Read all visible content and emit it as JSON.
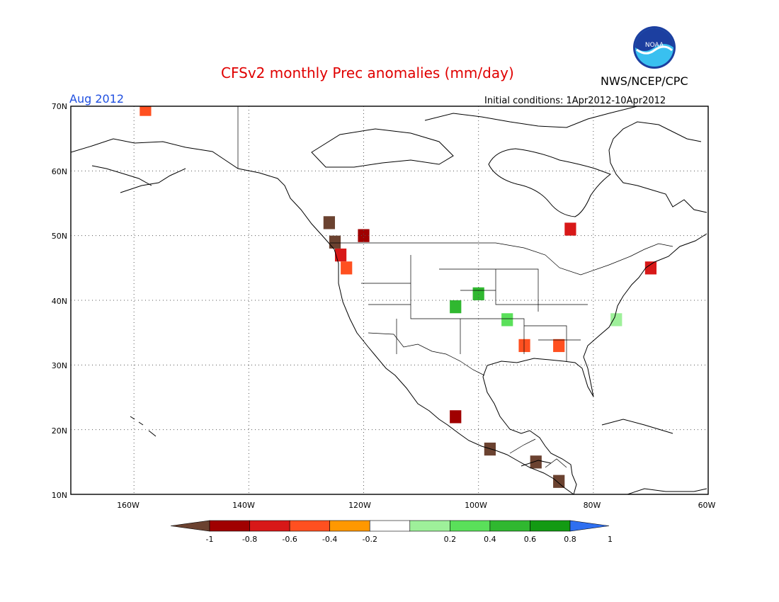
{
  "header": {
    "title": "CFSv2 monthly Prec anomalies (mm/day)",
    "month": "Aug 2012",
    "initial_conditions": "Initial conditions: 1Apr2012-10Apr2012",
    "agency": "NWS/NCEP/CPC",
    "logo_text": "NOAA"
  },
  "axes": {
    "lat_labels": [
      "70N",
      "60N",
      "50N",
      "40N",
      "30N",
      "20N",
      "10N"
    ],
    "lon_labels": [
      "160W",
      "140W",
      "120W",
      "100W",
      "80W",
      "60W"
    ]
  },
  "colorbar": {
    "labels": [
      "-1",
      "-0.8",
      "-0.6",
      "-0.4",
      "-0.2",
      "0.2",
      "0.4",
      "0.6",
      "0.8",
      "1"
    ],
    "colors": [
      "#6b4230",
      "#a00000",
      "#d81818",
      "#ff5020",
      "#ff9800",
      "#ffffff",
      "#9ef09a",
      "#5ae05a",
      "#30b830",
      "#139a13",
      "#2f6ff0"
    ]
  },
  "map": {
    "lon_range": [
      -171,
      -60
    ],
    "lat_range": [
      10,
      70
    ],
    "anomaly_cells": [
      {
        "lon": -158,
        "lat": 69.5,
        "level": 3
      },
      {
        "lon": -126,
        "lat": 52,
        "level": 0
      },
      {
        "lon": -125,
        "lat": 49,
        "level": 0
      },
      {
        "lon": -124,
        "lat": 47,
        "level": 2
      },
      {
        "lon": -123,
        "lat": 45,
        "level": 3
      },
      {
        "lon": -120,
        "lat": 50,
        "level": 1
      },
      {
        "lon": -104,
        "lat": 22,
        "level": 1
      },
      {
        "lon": -98,
        "lat": 17,
        "level": 0
      },
      {
        "lon": -90,
        "lat": 15,
        "level": 0
      },
      {
        "lon": -86,
        "lat": 12,
        "level": 0
      },
      {
        "lon": -84,
        "lat": 51,
        "level": 2
      },
      {
        "lon": -70,
        "lat": 45,
        "level": 2
      },
      {
        "lon": -100,
        "lat": 41,
        "level": 8
      },
      {
        "lon": -104,
        "lat": 39,
        "level": 8
      },
      {
        "lon": -95,
        "lat": 37,
        "level": 7
      },
      {
        "lon": -92,
        "lat": 33,
        "level": 3
      },
      {
        "lon": -86,
        "lat": 33,
        "level": 3
      },
      {
        "lon": -76,
        "lat": 37,
        "level": 6
      }
    ]
  }
}
